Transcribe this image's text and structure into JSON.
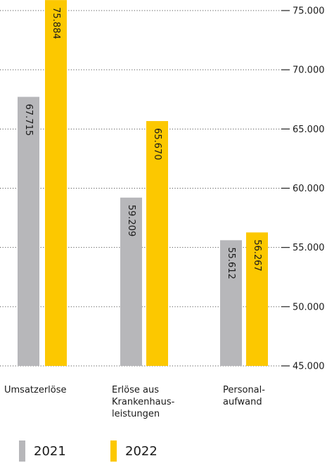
{
  "chart_data": {
    "type": "bar",
    "categories": [
      "Umsatzerlöse",
      "Erlöse aus\nKrankenhaus-\nleistungen",
      "Personal-\naufwand"
    ],
    "series": [
      {
        "name": "2021",
        "values": [
          67715,
          59209,
          55612
        ],
        "labels": [
          "67.715",
          "59.209",
          "55.612"
        ],
        "color": "#b7b7ba"
      },
      {
        "name": "2022",
        "values": [
          75884,
          65670,
          56267
        ],
        "labels": [
          "75.884",
          "65.670",
          "56.267"
        ],
        "color": "#fcc800"
      }
    ],
    "ylim": [
      45000,
      75000
    ],
    "yticks": [
      45000,
      50000,
      55000,
      60000,
      65000,
      70000,
      75000
    ],
    "ytick_labels": [
      "45.000",
      "50.000",
      "55.000",
      "60.000",
      "65.000",
      "70.000",
      "75.000"
    ],
    "y_axis_position": "right",
    "grid": true,
    "legend_position": "bottom-left"
  }
}
